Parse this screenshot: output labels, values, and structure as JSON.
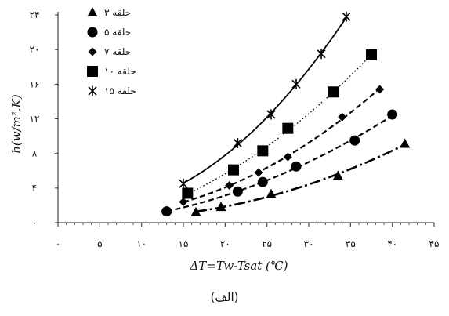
{
  "chart_data": {
    "type": "scatter",
    "xlabel": "ΔT=Tw-Tsat (℃)",
    "ylabel": "h(w/m².K)",
    "xlim": [
      0,
      45
    ],
    "ylim": [
      0,
      24
    ],
    "x_ticks": [
      0,
      5,
      10,
      15,
      20,
      25,
      30,
      35,
      40,
      45
    ],
    "x_tick_labels": [
      "۰",
      "۵",
      "۱۰",
      "۱۵",
      "۲۰",
      "۲۵",
      "۳۰",
      "۳۵",
      "۴۰",
      "۴۵"
    ],
    "y_ticks": [
      0,
      4,
      8,
      12,
      16,
      20,
      24
    ],
    "y_tick_labels": [
      "۰",
      "۴",
      "۸",
      "۱۲",
      "۱۶",
      "۲۰",
      "۲۴"
    ],
    "grid": false,
    "legend_position": "top-left",
    "series": [
      {
        "name": "۳ حلقه",
        "marker": "triangle",
        "line": "dashdot",
        "points": [
          [
            16.5,
            1.2
          ],
          [
            19.5,
            1.8
          ],
          [
            25.5,
            3.3
          ],
          [
            33.5,
            5.4
          ],
          [
            41.5,
            9.1
          ]
        ]
      },
      {
        "name": "۵ حلقه",
        "marker": "circle",
        "line": "dashed",
        "points": [
          [
            13,
            1.3
          ],
          [
            21.5,
            3.6
          ],
          [
            24.5,
            4.7
          ],
          [
            28.5,
            6.5
          ],
          [
            35.5,
            9.5
          ],
          [
            40,
            12.5
          ]
        ]
      },
      {
        "name": "۷ حلقه",
        "marker": "diamond",
        "line": "dashed",
        "points": [
          [
            15,
            2.4
          ],
          [
            20.5,
            4.3
          ],
          [
            24,
            5.8
          ],
          [
            27.5,
            7.6
          ],
          [
            34,
            12.2
          ],
          [
            38.5,
            15.4
          ]
        ]
      },
      {
        "name": "۱۰ حلقه",
        "marker": "square",
        "line": "dotted",
        "points": [
          [
            15.5,
            3.4
          ],
          [
            21,
            6.1
          ],
          [
            24.5,
            8.3
          ],
          [
            27.5,
            10.9
          ],
          [
            33,
            15.1
          ],
          [
            37.5,
            19.4
          ]
        ]
      },
      {
        "name": "۱۵ حلقه",
        "marker": "star",
        "line": "solid",
        "points": [
          [
            15,
            4.5
          ],
          [
            21.5,
            9.2
          ],
          [
            25.5,
            12.5
          ],
          [
            28.5,
            16
          ],
          [
            31.5,
            19.5
          ],
          [
            34.5,
            23.8
          ]
        ]
      }
    ]
  },
  "caption": "(الف)"
}
